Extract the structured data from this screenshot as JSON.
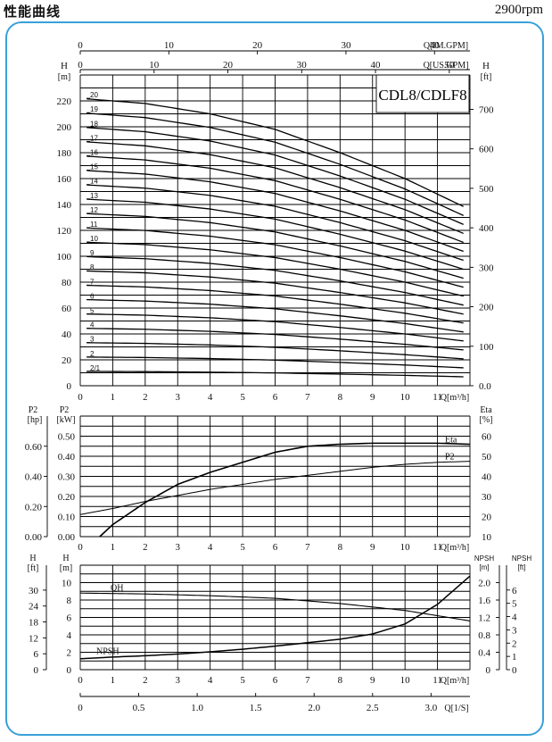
{
  "header": {
    "title": "性能曲线",
    "speed": "2900rpm"
  },
  "model_label": "CDL8/CDLF8",
  "chart_data": [
    {
      "type": "line",
      "name": "head-chart",
      "x_axis": {
        "label": "Q[m³/h]",
        "ticks": [
          0,
          1,
          2,
          3,
          4,
          5,
          6,
          7,
          8,
          9,
          10,
          11
        ],
        "range": [
          0,
          12
        ]
      },
      "top_axis_im": {
        "label": "Q[IM.GPM]",
        "ticks": [
          0,
          10,
          20,
          30,
          40
        ],
        "range": [
          0,
          44
        ]
      },
      "top_axis_us": {
        "label": "Q[US.GPM]",
        "ticks": [
          0,
          10,
          20,
          30,
          40,
          50
        ],
        "range": [
          0,
          52.8
        ]
      },
      "y_axis_left": {
        "label": "H",
        "unit": "[m]",
        "ticks": [
          0,
          20,
          40,
          60,
          80,
          100,
          120,
          140,
          160,
          180,
          200,
          220
        ],
        "range": [
          0,
          240
        ]
      },
      "y_axis_right": {
        "label": "H",
        "unit": "[ft]",
        "tick_labels": [
          "0.0",
          "100",
          "200",
          "300",
          "400",
          "500",
          "600",
          "700"
        ],
        "tick_values": [
          0,
          100,
          200,
          300,
          400,
          500,
          600,
          700
        ],
        "range": [
          0,
          787
        ]
      },
      "stage_labels": [
        "2/1",
        "2",
        "3",
        "4",
        "5",
        "6",
        "7",
        "8",
        "9",
        "10",
        "11",
        "12",
        "13",
        "14",
        "15",
        "16",
        "17",
        "18",
        "19",
        "20"
      ],
      "stages": [
        1,
        2,
        3,
        4,
        5,
        6,
        7,
        8,
        9,
        10,
        11,
        12,
        13,
        14,
        15,
        16,
        17,
        18,
        19,
        20
      ],
      "per_stage_curve": {
        "q": [
          0,
          2,
          4,
          6,
          8,
          10,
          12
        ],
        "h": [
          11.1,
          10.9,
          10.5,
          9.9,
          9.0,
          8.0,
          6.8
        ]
      }
    },
    {
      "type": "line",
      "name": "power-efficiency-chart",
      "x_axis": {
        "label": "Q[m³/h]",
        "ticks": [
          0,
          1,
          2,
          3,
          4,
          5,
          6,
          7,
          8,
          9,
          10,
          11
        ],
        "range": [
          0,
          12
        ]
      },
      "y_axis_hp": {
        "label": "P2",
        "unit": "[hp]",
        "tick_labels": [
          "0.00",
          "0.20",
          "0.40",
          "0.60"
        ],
        "tick_values": [
          0,
          0.2,
          0.4,
          0.6
        ],
        "range": [
          0,
          0.8
        ]
      },
      "y_axis_kw": {
        "label": "P2",
        "unit": "[kW]",
        "tick_labels": [
          "0.00",
          "0.10",
          "0.20",
          "0.30",
          "0.40",
          "0.50"
        ],
        "tick_values": [
          0,
          0.1,
          0.2,
          0.3,
          0.4,
          0.5
        ],
        "range": [
          0,
          0.6
        ]
      },
      "y_axis_eta": {
        "label": "Eta",
        "unit": "[%]",
        "ticks": [
          10,
          20,
          30,
          40,
          50,
          60
        ],
        "range": [
          10,
          70
        ]
      },
      "series": [
        {
          "name": "Eta",
          "axis": "eta",
          "x": [
            0.6,
            1,
            2,
            3,
            4,
            5,
            6,
            7,
            8,
            9,
            10,
            11,
            12
          ],
          "y": [
            10,
            16,
            27,
            36,
            42,
            47,
            52,
            55,
            56,
            56.5,
            56.5,
            56.5,
            56
          ]
        },
        {
          "name": "P2",
          "axis": "kw",
          "x": [
            0,
            1,
            2,
            3,
            4,
            5,
            6,
            7,
            8,
            9,
            10,
            11,
            12
          ],
          "y": [
            0.11,
            0.14,
            0.175,
            0.205,
            0.235,
            0.26,
            0.285,
            0.305,
            0.325,
            0.345,
            0.36,
            0.37,
            0.375
          ]
        }
      ]
    },
    {
      "type": "line",
      "name": "npsh-chart",
      "x_axis": {
        "label": "Q[m³/h]",
        "ticks": [
          0,
          1,
          2,
          3,
          4,
          5,
          6,
          7,
          8,
          9,
          10,
          11
        ],
        "range": [
          0,
          12
        ]
      },
      "bottom_axis_ls": {
        "label": "Q[1/S]",
        "tick_labels": [
          "0",
          "0.5",
          "1.0",
          "1.5",
          "2.0",
          "2.5",
          "3.0"
        ],
        "tick_values": [
          0,
          0.5,
          1.0,
          1.5,
          2.0,
          2.5,
          3.0
        ],
        "range": [
          0,
          3.333
        ]
      },
      "y_axis_left_ft": {
        "label": "H",
        "unit": "[ft]",
        "ticks": [
          0,
          6,
          12,
          18,
          24,
          30
        ],
        "range": [
          0,
          39.4
        ]
      },
      "y_axis_left_m": {
        "label": "H",
        "unit": "[m]",
        "ticks": [
          0,
          2,
          4,
          6,
          8,
          10
        ],
        "range": [
          0,
          12
        ]
      },
      "y_axis_right_m": {
        "label": "NPSH",
        "unit": "[m]",
        "tick_labels": [
          "0",
          "0.4",
          "0.8",
          "1.2",
          "1.6",
          "2.0"
        ],
        "tick_values": [
          0,
          0.4,
          0.8,
          1.2,
          1.6,
          2.0
        ],
        "range": [
          0,
          2.4
        ]
      },
      "y_axis_right_ft": {
        "label": "NPSH",
        "unit": "[ft]",
        "ticks": [
          0,
          1,
          2,
          3,
          4,
          5,
          6
        ],
        "range": [
          0,
          7.87
        ]
      },
      "series": [
        {
          "name": "QH",
          "axis": "m",
          "x": [
            0,
            2,
            4,
            6,
            8,
            10,
            12
          ],
          "y": [
            8.8,
            8.7,
            8.5,
            8.2,
            7.6,
            6.8,
            5.6
          ]
        },
        {
          "name": "NPSH",
          "axis": "npsh",
          "x": [
            0,
            1,
            2,
            3,
            4,
            5,
            6,
            7,
            8,
            9,
            10,
            11,
            12
          ],
          "y": [
            0.25,
            0.29,
            0.32,
            0.36,
            0.41,
            0.47,
            0.54,
            0.62,
            0.7,
            0.82,
            1.05,
            1.5,
            2.15
          ]
        }
      ]
    }
  ]
}
